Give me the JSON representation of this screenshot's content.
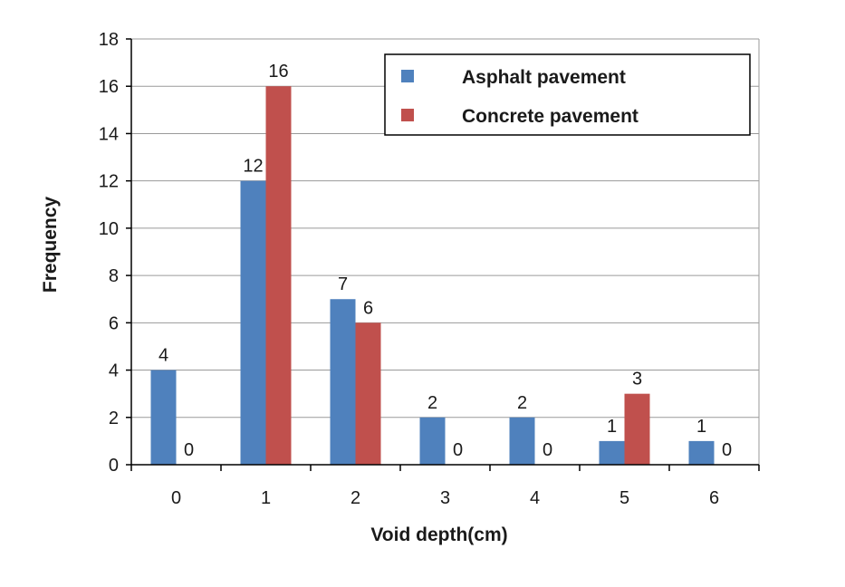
{
  "chart_data": {
    "type": "bar",
    "categories": [
      "0",
      "1",
      "2",
      "3",
      "4",
      "5",
      "6"
    ],
    "series": [
      {
        "name": "Asphalt pavement",
        "values": [
          4,
          12,
          7,
          2,
          2,
          1,
          1
        ],
        "color": "#4f81bd"
      },
      {
        "name": "Concrete pavement",
        "values": [
          0,
          16,
          6,
          0,
          0,
          3,
          0
        ],
        "color": "#c0504d"
      }
    ],
    "xlabel": "Void depth(cm)",
    "ylabel": "Frequency",
    "ylim": [
      0,
      18
    ],
    "yticks": [
      0,
      2,
      4,
      6,
      8,
      10,
      12,
      14,
      16,
      18
    ],
    "grid": true,
    "legend_position": "top-right",
    "data_labels": true
  }
}
